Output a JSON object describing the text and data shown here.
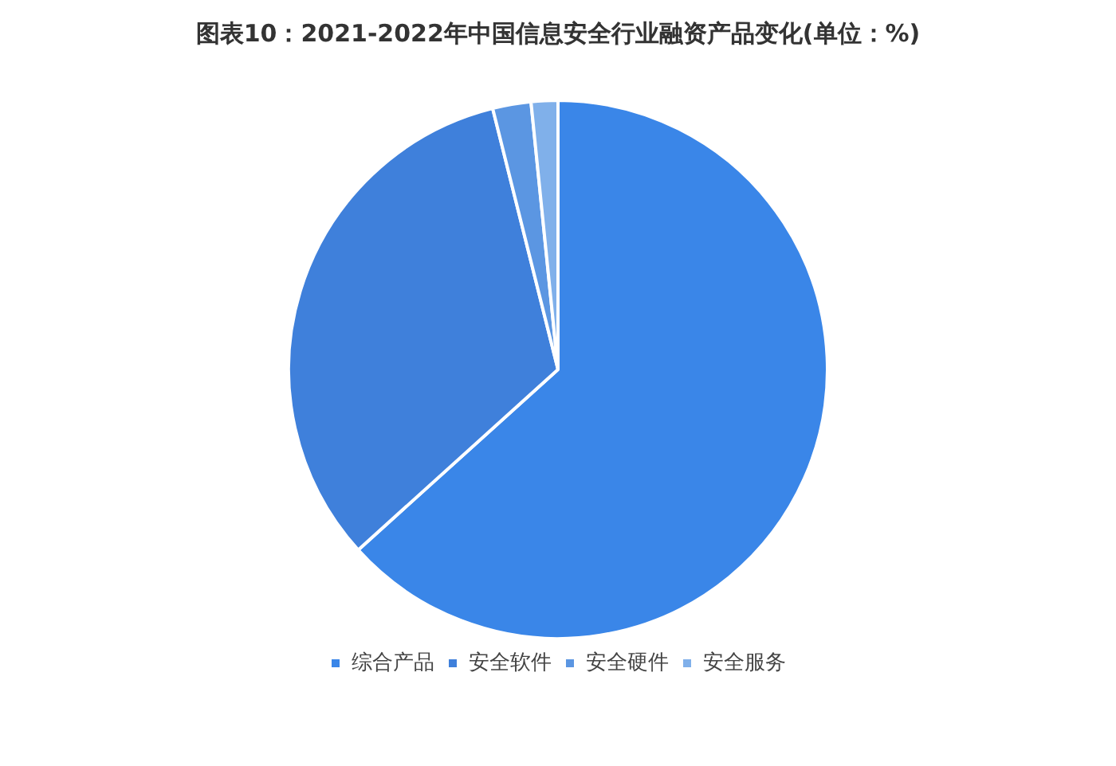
{
  "chart_data": {
    "type": "pie",
    "title": "图表10：2021-2022年中国信息安全行业融资产品变化(单位：%)",
    "categories": [
      "综合产品",
      "安全软件",
      "安全硬件",
      "安全服务"
    ],
    "values": [
      63.3,
      32.8,
      2.3,
      1.6
    ],
    "colors": [
      "#3a86e8",
      "#3f80db",
      "#5b96e2",
      "#80b0ea"
    ],
    "legend": "bottom"
  }
}
